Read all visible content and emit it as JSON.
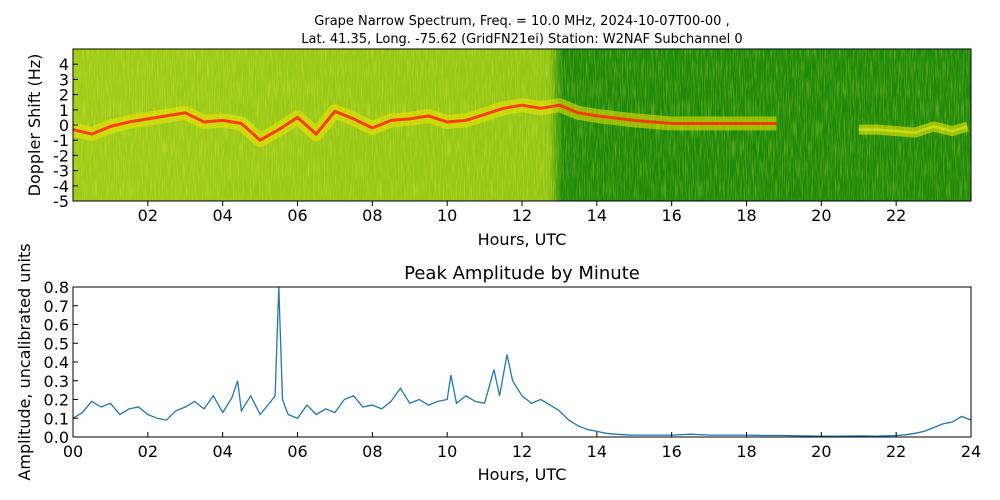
{
  "chart_data": [
    {
      "type": "heatmap",
      "title_line1": "Grape Narrow Spectrum, Freq. = 10.0 MHz, 2024-10-07T00-00 ,",
      "title_line2": "Lat.  41.35, Long. -75.62 (GridFN21ei) Station: W2NAF Subchannel 0",
      "xlabel": "Hours, UTC",
      "ylabel": "Doppler Shift (Hz)",
      "xlim": [
        0,
        24
      ],
      "ylim": [
        -5,
        5
      ],
      "x_ticks": [
        "02",
        "04",
        "06",
        "08",
        "10",
        "12",
        "14",
        "16",
        "18",
        "20",
        "22"
      ],
      "x_tick_values": [
        2,
        4,
        6,
        8,
        10,
        12,
        14,
        16,
        18,
        20,
        22
      ],
      "y_ticks": [
        "4",
        "3",
        "2",
        "1",
        "0",
        "-1",
        "-2",
        "-3",
        "-4",
        "-5"
      ],
      "y_tick_values": [
        4,
        3,
        2,
        1,
        0,
        -1,
        -2,
        -3,
        -4,
        -5
      ],
      "colors": {
        "background": "#1f8a0a",
        "mid": "#c8e020",
        "peak": "#ff2a00",
        "signal": "#f2e600"
      },
      "doppler_trace": {
        "x": [
          0,
          0.5,
          1,
          1.5,
          2,
          2.5,
          3,
          3.5,
          4,
          4.5,
          5,
          5.5,
          6,
          6.5,
          7,
          7.5,
          8,
          8.5,
          9,
          9.5,
          10,
          10.5,
          11,
          11.5,
          12,
          12.5,
          13,
          13.5,
          14,
          15,
          16,
          17,
          18,
          18.8
        ],
        "y": [
          -0.3,
          -0.6,
          -0.1,
          0.2,
          0.4,
          0.6,
          0.8,
          0.2,
          0.3,
          0.1,
          -1.0,
          -0.3,
          0.5,
          -0.6,
          0.9,
          0.4,
          -0.2,
          0.3,
          0.4,
          0.6,
          0.2,
          0.3,
          0.7,
          1.1,
          1.3,
          1.1,
          1.3,
          0.8,
          0.6,
          0.3,
          0.1,
          0.1,
          0.1,
          0.1
        ]
      },
      "doppler_trace_late": {
        "x": [
          21,
          21.5,
          22,
          22.5,
          23,
          23.5,
          23.9
        ],
        "y": [
          -0.3,
          -0.3,
          -0.4,
          -0.5,
          -0.1,
          -0.4,
          -0.1
        ]
      }
    },
    {
      "type": "line",
      "title": "Peak Amplitude by Minute",
      "xlabel": "Hours, UTC",
      "ylabel": "Amplitude, uncalibrated units",
      "xlim": [
        0,
        24
      ],
      "ylim": [
        0,
        0.8
      ],
      "x_ticks": [
        "00",
        "02",
        "04",
        "06",
        "08",
        "10",
        "12",
        "14",
        "16",
        "18",
        "20",
        "22",
        "24"
      ],
      "x_tick_values": [
        0,
        2,
        4,
        6,
        8,
        10,
        12,
        14,
        16,
        18,
        20,
        22,
        24
      ],
      "y_ticks": [
        "0.0",
        "0.1",
        "0.2",
        "0.3",
        "0.4",
        "0.5",
        "0.6",
        "0.7",
        "0.8"
      ],
      "y_tick_values": [
        0,
        0.1,
        0.2,
        0.3,
        0.4,
        0.5,
        0.6,
        0.7,
        0.8
      ],
      "line_color": "#1f77b4",
      "series": [
        {
          "x": [
            0,
            0.25,
            0.5,
            0.75,
            1,
            1.25,
            1.5,
            1.75,
            2,
            2.25,
            2.5,
            2.75,
            3,
            3.25,
            3.5,
            3.75,
            4,
            4.25,
            4.4,
            4.5,
            4.75,
            5,
            5.25,
            5.4,
            5.5,
            5.6,
            5.75,
            6,
            6.25,
            6.5,
            6.75,
            7,
            7.25,
            7.5,
            7.75,
            8,
            8.25,
            8.5,
            8.75,
            9,
            9.25,
            9.5,
            9.75,
            10,
            10.1,
            10.25,
            10.5,
            10.75,
            11,
            11.25,
            11.4,
            11.6,
            11.75,
            12,
            12.25,
            12.5,
            12.75,
            13,
            13.25,
            13.5,
            13.75,
            14,
            14.25,
            14.5,
            14.75,
            15,
            15.5,
            16,
            16.5,
            17,
            17.5,
            18,
            18.5,
            19,
            19.5,
            20,
            20.5,
            21,
            21.5,
            22,
            22.25,
            22.5,
            22.75,
            23,
            23.25,
            23.5,
            23.75,
            24
          ],
          "y": [
            0.1,
            0.13,
            0.19,
            0.16,
            0.18,
            0.12,
            0.15,
            0.16,
            0.12,
            0.1,
            0.09,
            0.14,
            0.16,
            0.19,
            0.15,
            0.22,
            0.13,
            0.21,
            0.3,
            0.14,
            0.22,
            0.12,
            0.18,
            0.22,
            0.8,
            0.2,
            0.12,
            0.1,
            0.17,
            0.12,
            0.15,
            0.13,
            0.2,
            0.22,
            0.16,
            0.17,
            0.15,
            0.19,
            0.26,
            0.18,
            0.2,
            0.17,
            0.19,
            0.2,
            0.33,
            0.18,
            0.22,
            0.19,
            0.18,
            0.36,
            0.22,
            0.44,
            0.3,
            0.22,
            0.18,
            0.2,
            0.17,
            0.14,
            0.09,
            0.06,
            0.04,
            0.03,
            0.02,
            0.015,
            0.012,
            0.01,
            0.01,
            0.01,
            0.015,
            0.01,
            0.01,
            0.01,
            0.008,
            0.008,
            0.006,
            0.005,
            0.005,
            0.006,
            0.005,
            0.008,
            0.012,
            0.02,
            0.03,
            0.05,
            0.07,
            0.08,
            0.11,
            0.09
          ]
        }
      ]
    }
  ]
}
